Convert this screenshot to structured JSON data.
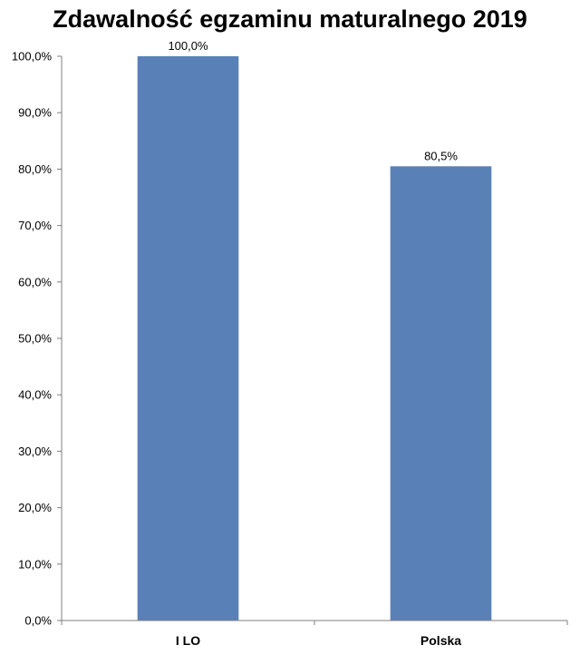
{
  "chart_data": {
    "type": "bar",
    "title": "Zdawalność egzaminu maturalnego 2019",
    "categories": [
      "I LO",
      "Polska"
    ],
    "values": [
      100.0,
      80.5
    ],
    "data_labels": [
      "100,0%",
      "80,5%"
    ],
    "y_ticks": [
      "0,0%",
      "10,0%",
      "20,0%",
      "30,0%",
      "40,0%",
      "50,0%",
      "60,0%",
      "70,0%",
      "80,0%",
      "90,0%",
      "100,0%"
    ],
    "ylim": [
      0,
      100
    ],
    "xlabel": "",
    "ylabel": "",
    "grid": false,
    "legend": "none",
    "bar_color": "#5a80b8",
    "axis_color": "#7f7f7f"
  }
}
